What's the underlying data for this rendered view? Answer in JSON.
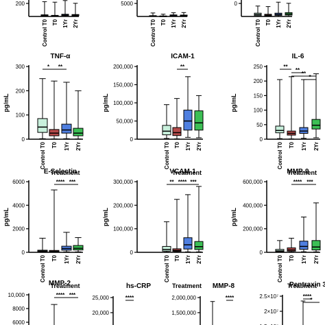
{
  "chart_data": [
    {
      "type": "box",
      "row": "top",
      "col": 0,
      "title": "",
      "ylabel": "",
      "xlabel": "",
      "ylim": [
        0,
        300
      ],
      "yticks": [
        "200"
      ],
      "categories": [
        "Control T0",
        "T0",
        "1Yr",
        "2Yr"
      ],
      "colors": [
        "#c8f0dc",
        "#b44a4a",
        "#4f7fe0",
        "#3cbf55"
      ],
      "boxes": [
        [
          0,
          10,
          18,
          30,
          270
        ],
        [
          0,
          6,
          12,
          20,
          260
        ],
        [
          0,
          15,
          25,
          40,
          290
        ],
        [
          0,
          12,
          22,
          35,
          240
        ]
      ],
      "annotations": []
    },
    {
      "type": "box",
      "row": "top",
      "col": 1,
      "title": "",
      "ylabel": "",
      "xlabel": "",
      "ylim": [
        0,
        40000
      ],
      "yticks": [
        "5000"
      ],
      "categories": [
        "Control T0",
        "T0",
        "1Yr",
        "2Yr"
      ],
      "colors": [
        "#c8f0dc",
        "#b44a4a",
        "#4f7fe0",
        "#3cbf55"
      ],
      "boxes": [
        [
          0,
          300,
          900,
          2000,
          8500
        ],
        [
          0,
          200,
          600,
          1200,
          5500
        ],
        [
          0,
          600,
          1800,
          3800,
          9000
        ],
        [
          0,
          500,
          1600,
          3400,
          9500
        ]
      ],
      "annotations": []
    },
    {
      "type": "box",
      "row": "top",
      "col": 2,
      "title": "",
      "ylabel": "",
      "xlabel": "",
      "ylim": [
        0,
        300
      ],
      "yticks": [
        "0"
      ],
      "categories": [
        "Control T0",
        "T0",
        "1Yr",
        "2Yr"
      ],
      "colors": [
        "#c8f0dc",
        "#b44a4a",
        "#4f7fe0",
        "#3cbf55"
      ],
      "boxes": [
        [
          0,
          15,
          35,
          60,
          190
        ],
        [
          0,
          10,
          22,
          40,
          180
        ],
        [
          0,
          20,
          38,
          60,
          260
        ],
        [
          0,
          25,
          45,
          70,
          240
        ]
      ],
      "annotations": []
    },
    {
      "type": "box",
      "row": 1,
      "col": 0,
      "title": "TNF-α",
      "ylabel": "pg/mL",
      "xlabel": "Treatment",
      "ylim": [
        0,
        300
      ],
      "yticks": [
        "0",
        "100",
        "200",
        "300"
      ],
      "categories": [
        "Control T0",
        "T0",
        "1Yr",
        "2Yr"
      ],
      "colors": [
        "#c8f0dc",
        "#b44a4a",
        "#4f7fe0",
        "#3cbf55"
      ],
      "boxes": [
        [
          2,
          28,
          50,
          85,
          250
        ],
        [
          1,
          14,
          25,
          40,
          240
        ],
        [
          2,
          25,
          38,
          62,
          235
        ],
        [
          1,
          14,
          25,
          45,
          200
        ]
      ],
      "annotations": [
        {
          "from": 0,
          "to": 1,
          "label": "*"
        },
        {
          "from": 1,
          "to": 2,
          "label": "**"
        }
      ]
    },
    {
      "type": "box",
      "row": 1,
      "col": 1,
      "title": "ICAM-1",
      "ylabel": "pg/mL",
      "xlabel": "Treatment",
      "ylim": [
        0,
        200000
      ],
      "yticks": [
        "0",
        "50,000",
        "100,000",
        "150,000",
        "200,000"
      ],
      "categories": [
        "Control T0",
        "T0",
        "1Yr",
        "2Yr"
      ],
      "colors": [
        "#c8f0dc",
        "#b44a4a",
        "#4f7fe0",
        "#3cbf55"
      ],
      "boxes": [
        [
          2000,
          12000,
          22000,
          38000,
          95000
        ],
        [
          1000,
          10000,
          18000,
          32000,
          112000
        ],
        [
          5000,
          25000,
          50000,
          80000,
          172000
        ],
        [
          4000,
          25000,
          45000,
          78000,
          120000
        ]
      ],
      "annotations": [
        {
          "from": 1,
          "to": 2,
          "label": "**"
        }
      ]
    },
    {
      "type": "box",
      "row": 1,
      "col": 2,
      "title": "IL-6",
      "ylabel": "pg/mL",
      "xlabel": "Treatment",
      "ylim": [
        0,
        250
      ],
      "yticks": [
        "0",
        "50",
        "100",
        "150",
        "200",
        "250"
      ],
      "categories": [
        "Control T0",
        "T0",
        "1Yr",
        "2Yr"
      ],
      "colors": [
        "#c8f0dc",
        "#b44a4a",
        "#4f7fe0",
        "#3cbf55"
      ],
      "boxes": [
        [
          2,
          22,
          30,
          45,
          205
        ],
        [
          1,
          14,
          20,
          28,
          215
        ],
        [
          3,
          20,
          28,
          40,
          205
        ],
        [
          5,
          35,
          48,
          68,
          225
        ]
      ],
      "annotations": [
        {
          "from": 0,
          "to": 1,
          "label": "**",
          "level": 0
        },
        {
          "from": 1,
          "to": 2,
          "label": "**",
          "level": 1
        },
        {
          "from": 1,
          "to": 3,
          "label": "**",
          "level": 2
        },
        {
          "from": 2,
          "to": 3,
          "label": "*",
          "level": 3
        }
      ]
    },
    {
      "type": "box",
      "row": 2,
      "col": 0,
      "title": "E-Selectin",
      "ylabel": "pg/mL",
      "xlabel": "Treatment",
      "ylim": [
        0,
        6000
      ],
      "yticks": [
        "0",
        "2000",
        "4000",
        "6000"
      ],
      "categories": [
        "Control T0",
        "T0",
        "1Yr",
        "2Yr"
      ],
      "colors": [
        "#c8f0dc",
        "#b44a4a",
        "#4f7fe0",
        "#3cbf55"
      ],
      "boxes": [
        [
          20,
          60,
          110,
          180,
          1200
        ],
        [
          10,
          50,
          90,
          160,
          5300
        ],
        [
          40,
          180,
          320,
          520,
          1700
        ],
        [
          40,
          200,
          340,
          580,
          1250
        ]
      ],
      "annotations": [
        {
          "from": 1,
          "to": 2,
          "label": "****"
        },
        {
          "from": 2,
          "to": 3,
          "label": "***"
        }
      ]
    },
    {
      "type": "box",
      "row": 2,
      "col": 1,
      "title": "VCAM-1",
      "ylabel": "pg/mL",
      "xlabel": "Treatment",
      "ylim": [
        0,
        300000
      ],
      "yticks": [
        "0",
        "100,000",
        "200,000",
        "300,000"
      ],
      "categories": [
        "Control T0",
        "T0",
        "1Yr",
        "2Yr"
      ],
      "colors": [
        "#c8f0dc",
        "#b44a4a",
        "#4f7fe0",
        "#3cbf55"
      ],
      "boxes": [
        [
          1000,
          5000,
          12000,
          25000,
          130000
        ],
        [
          1000,
          4000,
          8000,
          15000,
          225000
        ],
        [
          2000,
          14000,
          32000,
          62000,
          245000
        ],
        [
          2000,
          12000,
          24000,
          46000,
          280000
        ]
      ],
      "annotations": [
        {
          "from": 0,
          "to": 1,
          "label": "**",
          "level": 0
        },
        {
          "from": 1,
          "to": 2,
          "label": "****",
          "level": 0
        },
        {
          "from": 2,
          "to": 3,
          "label": "***",
          "level": 0
        }
      ]
    },
    {
      "type": "box",
      "row": 2,
      "col": 2,
      "title": "MMP-9",
      "ylabel": "pg/mL",
      "xlabel": "Treatment",
      "ylim": [
        0,
        600000
      ],
      "yticks": [
        "0",
        "200,000",
        "400,000",
        "600,000"
      ],
      "categories": [
        "Control T0",
        "T0",
        "1Yr",
        "2Yr"
      ],
      "colors": [
        "#c8f0dc",
        "#b44a4a",
        "#4f7fe0",
        "#3cbf55"
      ],
      "boxes": [
        [
          1000,
          5000,
          12000,
          25000,
          100000
        ],
        [
          2000,
          10000,
          20000,
          38000,
          120000
        ],
        [
          5000,
          25000,
          50000,
          95000,
          300000
        ],
        [
          4000,
          20000,
          45000,
          100000,
          420000
        ]
      ],
      "annotations": [
        {
          "from": 1,
          "to": 2,
          "label": "****"
        },
        {
          "from": 2,
          "to": 3,
          "label": "***"
        }
      ]
    },
    {
      "type": "box",
      "row": 3,
      "col": 0,
      "title": "MMP-2",
      "ylabel": "",
      "xlabel": "",
      "ylim": [
        5000,
        10000
      ],
      "yticks": [
        "6000",
        "8000",
        "10,000"
      ],
      "categories": [
        "Control T0",
        "T0",
        "1Yr",
        "2Yr"
      ],
      "colors": [
        "#c8f0dc",
        "#b44a4a",
        "#4f7fe0",
        "#3cbf55"
      ],
      "boxes": [
        [
          null,
          null,
          null,
          null,
          null
        ],
        [
          null,
          null,
          null,
          null,
          8400
        ],
        [
          null,
          null,
          null,
          null,
          null
        ],
        [
          null,
          null,
          null,
          null,
          null
        ]
      ],
      "annotations": [
        {
          "from": 1,
          "to": 2,
          "label": "****"
        },
        {
          "from": 2,
          "to": 3,
          "label": "***"
        }
      ]
    },
    {
      "type": "box",
      "row": 3,
      "col": 1,
      "title": "hs-CRP",
      "ylabel": "",
      "xlabel": "",
      "ylim": [
        14000,
        25000
      ],
      "yticks": [
        "15,000",
        "20,000",
        "25,000"
      ],
      "categories": [
        "Control T0",
        "T0",
        "1Yr",
        "2Yr"
      ],
      "colors": [
        "#c8f0dc",
        "#b44a4a",
        "#4f7fe0",
        "#3cbf55"
      ],
      "boxes": [],
      "annotations": [
        {
          "from": 0,
          "to": 1,
          "label": "****"
        }
      ]
    },
    {
      "type": "box",
      "row": 3,
      "col": 2,
      "title": "MMP-8",
      "ylabel": "",
      "xlabel": "",
      "ylim": [
        1300000,
        2000000
      ],
      "yticks": [
        "1,500,000",
        "2,000,000"
      ],
      "categories": [
        "Control T0",
        "T0",
        "1Yr",
        "2Yr"
      ],
      "colors": [
        "#c8f0dc",
        "#b44a4a",
        "#4f7fe0",
        "#3cbf55"
      ],
      "boxes": [
        [
          null,
          null,
          null,
          null,
          1900000
        ]
      ],
      "annotations": [
        {
          "from": 2,
          "to": 3,
          "label": "****"
        }
      ]
    },
    {
      "type": "box",
      "row": 3,
      "col": 3,
      "title": "Pentraxin 3",
      "ylabel": "",
      "xlabel": "",
      "ylim": [
        13000000,
        25000000
      ],
      "yticks": [
        "1.5×10⁷",
        "2×10⁷",
        "2.5×10⁷"
      ],
      "categories": [
        "Control T0",
        "T0",
        "1Yr",
        "2Yr"
      ],
      "colors": [
        "#c8f0dc",
        "#b44a4a",
        "#4f7fe0",
        "#3cbf55"
      ],
      "boxes": [
        [
          null,
          null,
          null,
          null,
          null
        ],
        [
          null,
          null,
          null,
          null,
          23000000
        ]
      ],
      "annotations": [
        {
          "from": 1,
          "to": 2,
          "label": "****",
          "level": 0
        },
        {
          "from": 1,
          "to": 3,
          "label": "*",
          "level": 1
        }
      ]
    }
  ]
}
